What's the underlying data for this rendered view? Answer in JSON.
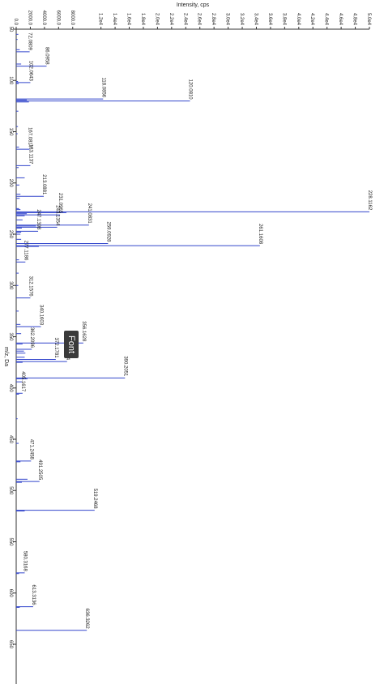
{
  "chart_data": {
    "type": "bar",
    "orientation": "rotated-90-clockwise",
    "title": "",
    "ylabel": "Intensity, cps",
    "xlabel": "m/z, Da",
    "intensity_ticks": [
      "0.0",
      "2000.0",
      "4000.0",
      "6000.0",
      "8000.0",
      "1.2e4",
      "1.4e4",
      "1.6e4",
      "1.8e4",
      "2.0e4",
      "2.2e4",
      "2.4e4",
      "2.6e4",
      "2.8e4",
      "3.0e4",
      "3.2e4",
      "3.4e4",
      "3.6e4",
      "3.8e4",
      "4.0e4",
      "4.2e4",
      "4.4e4",
      "4.6e4",
      "4.8e4",
      "5.0e4"
    ],
    "intensity_tick_values": [
      0,
      2000,
      4000,
      6000,
      8000,
      12000,
      14000,
      16000,
      18000,
      20000,
      22000,
      24000,
      26000,
      28000,
      30000,
      32000,
      34000,
      36000,
      38000,
      40000,
      42000,
      44000,
      46000,
      48000,
      50000
    ],
    "mz_ticks": [
      "50",
      "100",
      "150",
      "200",
      "250",
      "300",
      "350",
      "400",
      "450",
      "500",
      "550",
      "600",
      "650"
    ],
    "mz_tick_values": [
      50,
      100,
      150,
      200,
      250,
      300,
      350,
      400,
      450,
      500,
      550,
      600,
      650
    ],
    "xlim": [
      50,
      680
    ],
    "ylim": [
      0,
      50000
    ],
    "bar_color": "#3346cc",
    "labeled_peaks": [
      {
        "mz": 72.0809,
        "label": "72.0809",
        "intensity": 1900
      },
      {
        "mz": 86.0958,
        "label": "86.0958",
        "intensity": 4300
      },
      {
        "mz": 102.0643,
        "label": "102.0643",
        "intensity": 2000
      },
      {
        "mz": 118.0856,
        "label": "118.0856",
        "intensity": 12300
      },
      {
        "mz": 120.081,
        "label": "120.0810",
        "intensity": 24600
      },
      {
        "mz": 167.0817,
        "label": "167.0817",
        "intensity": 1900
      },
      {
        "mz": 183.1137,
        "label": "183.1137",
        "intensity": 2000
      },
      {
        "mz": 213.0881,
        "label": "213.0881",
        "intensity": 3900
      },
      {
        "mz": 228.1162,
        "label": "228.1162",
        "intensity": 50000
      },
      {
        "mz": 231.0965,
        "label": "231.0965",
        "intensity": 6200
      },
      {
        "mz": 241.0831,
        "label": "241.0831",
        "intensity": 10300
      },
      {
        "mz": 243.1354,
        "label": "243.1354",
        "intensity": 5800
      },
      {
        "mz": 247.1398,
        "label": "247.1398",
        "intensity": 3100
      },
      {
        "mz": 259.0928,
        "label": "259.0928",
        "intensity": 13000
      },
      {
        "mz": 261.1608,
        "label": "261.1608",
        "intensity": 34500
      },
      {
        "mz": 277.1186,
        "label": "277.1186",
        "intensity": 1300
      },
      {
        "mz": 312.1576,
        "label": "312.1576",
        "intensity": 2000
      },
      {
        "mz": 340.1603,
        "label": "340.1603",
        "intensity": 3500
      },
      {
        "mz": 356.1628,
        "label": "356.1628",
        "intensity": 9500
      },
      {
        "mz": 362.2096,
        "label": "362.2096",
        "intensity": 2200
      },
      {
        "mz": 372.1781,
        "label": "372.1781",
        "intensity": 5600
      },
      {
        "mz": 374.1744,
        "label": "374.1744",
        "intensity": 7200
      },
      {
        "mz": 390.2051,
        "label": "390.2051",
        "intensity": 15400
      },
      {
        "mz": 405.1617,
        "label": "405.1617",
        "intensity": 900
      },
      {
        "mz": 471.2458,
        "label": "471.2458",
        "intensity": 2100
      },
      {
        "mz": 491.2505,
        "label": "491.2505",
        "intensity": 3300
      },
      {
        "mz": 519.2468,
        "label": "519.2468",
        "intensity": 11100
      },
      {
        "mz": 580.3168,
        "label": "580.3168",
        "intensity": 1200
      },
      {
        "mz": 613.3136,
        "label": "613.3136",
        "intensity": 2400
      },
      {
        "mz": 636.3262,
        "label": "636.3262",
        "intensity": 10000
      }
    ],
    "unlabeled_peaks": [
      {
        "mz": 55,
        "intensity": 300
      },
      {
        "mz": 60,
        "intensity": 200
      },
      {
        "mz": 70,
        "intensity": 500
      },
      {
        "mz": 84,
        "intensity": 700
      },
      {
        "mz": 101,
        "intensity": 250
      },
      {
        "mz": 103,
        "intensity": 350
      },
      {
        "mz": 119,
        "intensity": 1500
      },
      {
        "mz": 121,
        "intensity": 1800
      },
      {
        "mz": 130,
        "intensity": 300
      },
      {
        "mz": 145,
        "intensity": 250
      },
      {
        "mz": 152,
        "intensity": 200
      },
      {
        "mz": 165,
        "intensity": 400
      },
      {
        "mz": 185,
        "intensity": 350
      },
      {
        "mz": 195,
        "intensity": 1200
      },
      {
        "mz": 202,
        "intensity": 450
      },
      {
        "mz": 211,
        "intensity": 600
      },
      {
        "mz": 215,
        "intensity": 500
      },
      {
        "mz": 225,
        "intensity": 400
      },
      {
        "mz": 226,
        "intensity": 600
      },
      {
        "mz": 229,
        "intensity": 7100
      },
      {
        "mz": 230,
        "intensity": 1500
      },
      {
        "mz": 232,
        "intensity": 1200
      },
      {
        "mz": 236,
        "intensity": 900
      },
      {
        "mz": 242,
        "intensity": 2800
      },
      {
        "mz": 244,
        "intensity": 800
      },
      {
        "mz": 248,
        "intensity": 700
      },
      {
        "mz": 250,
        "intensity": 600
      },
      {
        "mz": 255,
        "intensity": 700
      },
      {
        "mz": 262,
        "intensity": 3200
      },
      {
        "mz": 275,
        "intensity": 400
      },
      {
        "mz": 288,
        "intensity": 350
      },
      {
        "mz": 300,
        "intensity": 300
      },
      {
        "mz": 325,
        "intensity": 350
      },
      {
        "mz": 338,
        "intensity": 600
      },
      {
        "mz": 347,
        "intensity": 700
      },
      {
        "mz": 357,
        "intensity": 900
      },
      {
        "mz": 364,
        "intensity": 1100
      },
      {
        "mz": 366,
        "intensity": 1300
      },
      {
        "mz": 370,
        "intensity": 1200
      },
      {
        "mz": 375,
        "intensity": 900
      },
      {
        "mz": 391,
        "intensity": 1600
      },
      {
        "mz": 394,
        "intensity": 800
      },
      {
        "mz": 406,
        "intensity": 400
      },
      {
        "mz": 430,
        "intensity": 200
      },
      {
        "mz": 454,
        "intensity": 350
      },
      {
        "mz": 472,
        "intensity": 600
      },
      {
        "mz": 489,
        "intensity": 1600
      },
      {
        "mz": 492,
        "intensity": 800
      },
      {
        "mz": 520,
        "intensity": 1200
      },
      {
        "mz": 581,
        "intensity": 400
      },
      {
        "mz": 614,
        "intensity": 500
      }
    ]
  },
  "tooltip": {
    "label": "Font"
  },
  "colors": {
    "bars": "#3346cc",
    "axis": "#333333",
    "tooltip_bg": "#3a3a3a"
  }
}
